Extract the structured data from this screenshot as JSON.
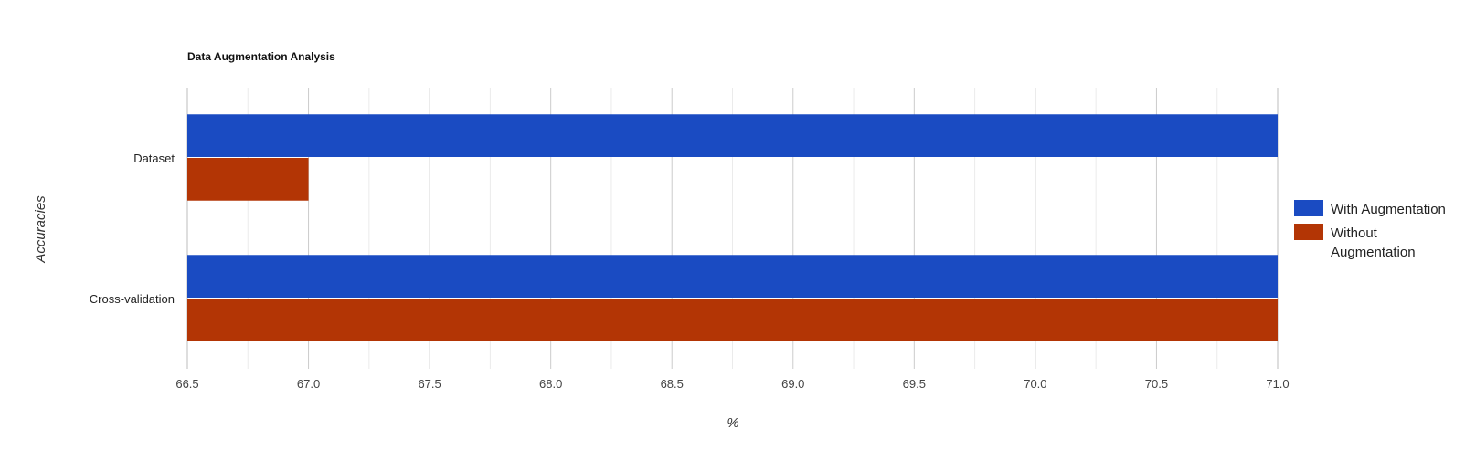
{
  "chart_data": {
    "type": "bar",
    "orientation": "horizontal",
    "title": "Data Augmentation Analysis",
    "xlabel": "%",
    "ylabel": "Accuracies",
    "categories": [
      "Dataset",
      "Cross-validation"
    ],
    "series": [
      {
        "name": "With Augmentation",
        "color": "#1a4bc2",
        "values": [
          71.0,
          71.0
        ]
      },
      {
        "name": "Without Augmentation",
        "color": "#b33505",
        "values": [
          67.0,
          71.0
        ]
      }
    ],
    "xlim": [
      66.5,
      71.0
    ],
    "x_ticks": [
      "66.5",
      "67.0",
      "67.5",
      "68.0",
      "68.5",
      "69.0",
      "69.5",
      "70.0",
      "70.5",
      "71.0"
    ],
    "grid": true,
    "legend_position": "right"
  },
  "legend_lines": {
    "With Augmentation": [
      "With Augmentation"
    ],
    "Without Augmentation": [
      "Without",
      "Augmentation"
    ]
  }
}
